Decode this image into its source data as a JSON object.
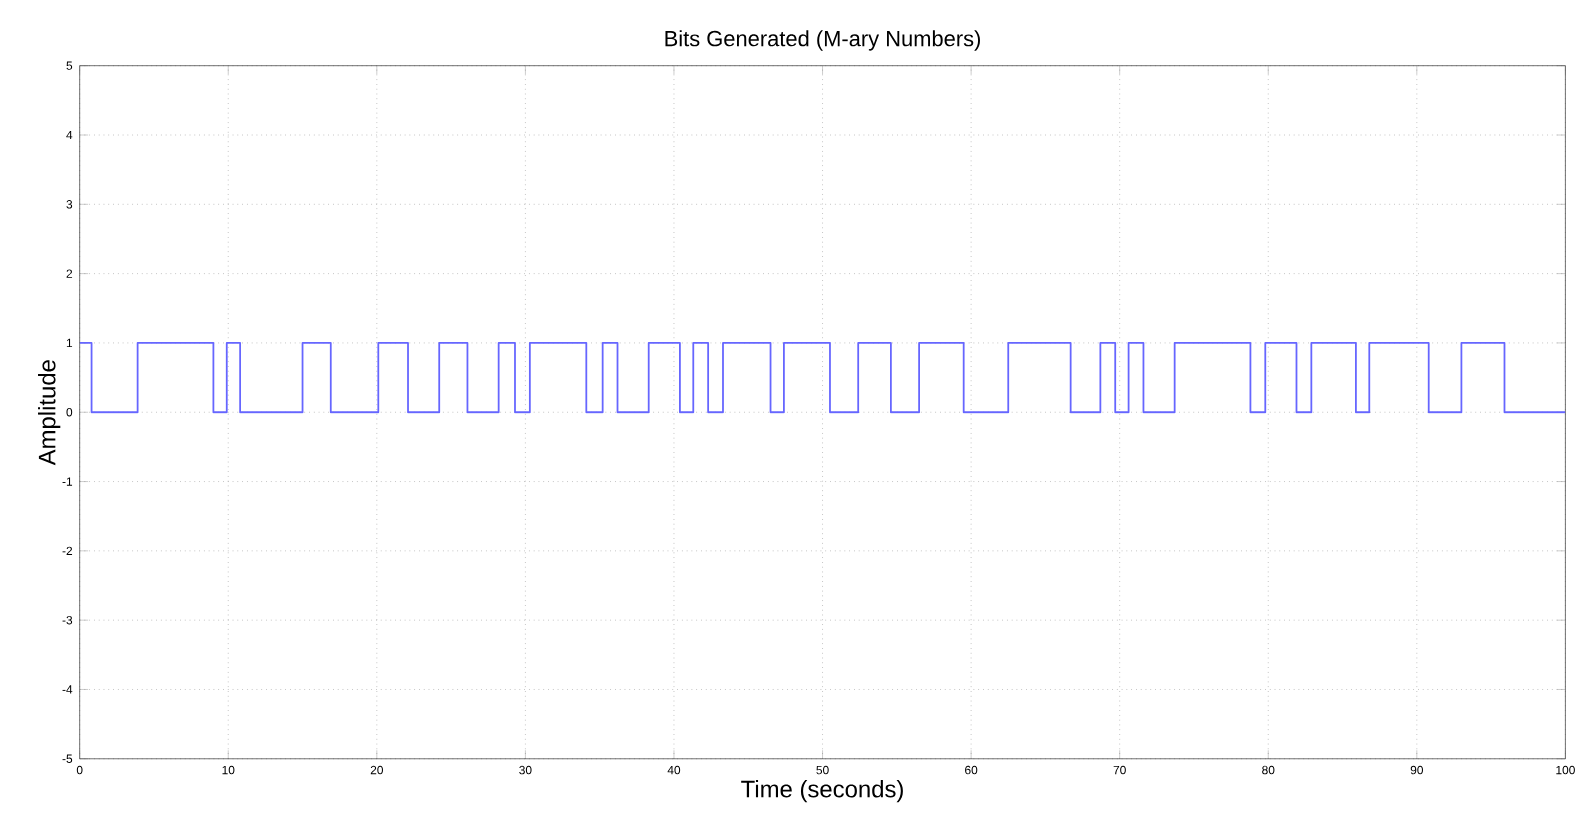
{
  "chart_data": {
    "type": "step",
    "title": "Bits Generated (M-ary Numbers)",
    "xlabel": "Time (seconds)",
    "ylabel": "Amplitude",
    "x": [
      0,
      0.8,
      3.9,
      9.0,
      9.9,
      10.8,
      15.0,
      16.9,
      20.1,
      22.1,
      24.2,
      26.1,
      28.2,
      29.3,
      30.3,
      34.1,
      35.2,
      36.2,
      38.3,
      40.4,
      41.3,
      42.3,
      43.3,
      46.5,
      47.4,
      50.5,
      52.4,
      54.6,
      56.5,
      59.5,
      62.5,
      66.7,
      68.7,
      69.7,
      70.6,
      71.6,
      73.7,
      78.8,
      79.8,
      81.9,
      82.9,
      85.9,
      86.8,
      90.8,
      93.0,
      95.9,
      100
    ],
    "values": [
      1,
      0,
      1,
      0,
      1,
      0,
      1,
      0,
      1,
      0,
      1,
      0,
      1,
      0,
      1,
      0,
      1,
      0,
      1,
      0,
      1,
      0,
      1,
      0,
      1,
      0,
      1,
      0,
      1,
      0,
      1,
      0,
      1,
      0,
      1,
      0,
      1,
      0,
      1,
      0,
      1,
      0,
      1,
      0,
      1,
      0,
      0
    ],
    "color": "#6666ff",
    "xlim": [
      0,
      100
    ],
    "ylim": [
      -5,
      5
    ],
    "xticks": [
      0,
      10,
      20,
      30,
      40,
      50,
      60,
      70,
      80,
      90,
      100
    ],
    "yticks": [
      -5,
      -4,
      -3,
      -2,
      -1,
      0,
      1,
      2,
      3,
      4,
      5
    ],
    "grid": true,
    "marker": "none",
    "line_style": "solid"
  }
}
